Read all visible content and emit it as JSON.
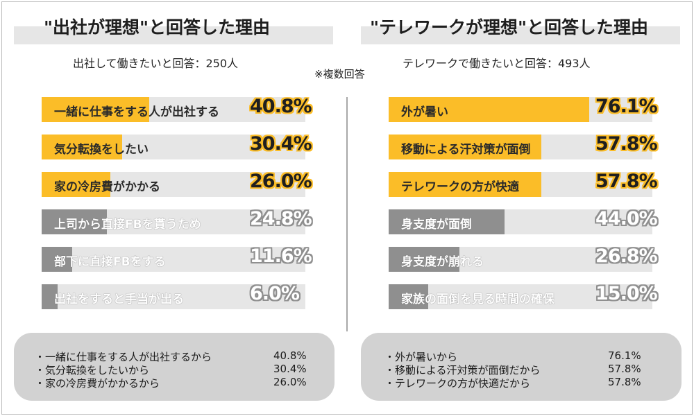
{
  "note": "※複数回答",
  "left": {
    "title": "\"出社が理想\"と回答した理由",
    "subtitle": "出社して働きたいと回答：250人",
    "items": [
      {
        "label": "一緒に仕事をする人が出社する",
        "value": 40.8,
        "pct": "40.8%",
        "highlight": true
      },
      {
        "label": "気分転換をしたい",
        "value": 30.4,
        "pct": "30.4%",
        "highlight": true
      },
      {
        "label": "家の冷房費がかかる",
        "value": 26.0,
        "pct": "26.0%",
        "highlight": true
      },
      {
        "label": "上司から直接FBを貰うため",
        "value": 24.8,
        "pct": "24.8%",
        "highlight": false
      },
      {
        "label": "部下に直接FBをする",
        "value": 11.6,
        "pct": "11.6%",
        "highlight": false
      },
      {
        "label": "出社をすると手当が出る",
        "value": 6.0,
        "pct": "6.0%",
        "highlight": false
      }
    ],
    "summary": [
      {
        "text": "・一緒に仕事をする人が出社するから",
        "pct": "40.8%"
      },
      {
        "text": "・気分転換をしたいから",
        "pct": "30.4%"
      },
      {
        "text": "・家の冷房費がかかるから",
        "pct": "26.0%"
      }
    ]
  },
  "right": {
    "title": "\"テレワークが理想\"と回答した理由",
    "subtitle": "テレワークで働きたいと回答：493人",
    "items": [
      {
        "label": "外が暑い",
        "value": 76.1,
        "pct": "76.1%",
        "highlight": true
      },
      {
        "label": "移動による汗対策が面倒",
        "value": 57.8,
        "pct": "57.8%",
        "highlight": true
      },
      {
        "label": "テレワークの方が快適",
        "value": 57.8,
        "pct": "57.8%",
        "highlight": true
      },
      {
        "label": "身支度が面倒",
        "value": 44.0,
        "pct": "44.0%",
        "highlight": false
      },
      {
        "label": "身支度が崩れる",
        "value": 26.8,
        "pct": "26.8%",
        "highlight": false
      },
      {
        "label": "家族の面倒を見る時間の確保",
        "value": 15.0,
        "pct": "15.0%",
        "highlight": false
      }
    ],
    "summary": [
      {
        "text": "・外が暑いから",
        "pct": "76.1%"
      },
      {
        "text": "・移動による汗対策が面倒だから",
        "pct": "57.8%"
      },
      {
        "text": "・テレワークの方が快適だから",
        "pct": "57.8%"
      }
    ]
  },
  "colors": {
    "accent": "#fbbd28",
    "muted": "#8f8f8f",
    "track": "#e6e6e6",
    "summary_bg": "#d2d2d2"
  },
  "chart_data": [
    {
      "type": "bar",
      "orientation": "horizontal",
      "title": "\"出社が理想\"と回答した理由",
      "subtitle": "出社して働きたいと回答：250人",
      "categories": [
        "一緒に仕事をする人が出社する",
        "気分転換をしたい",
        "家の冷房費がかかる",
        "上司から直接FBを貰うため",
        "部下に直接FBをする",
        "出社をすると手当が出る"
      ],
      "values": [
        40.8,
        30.4,
        26.0,
        24.8,
        11.6,
        6.0
      ],
      "unit": "%",
      "xlim": [
        0,
        100
      ]
    },
    {
      "type": "bar",
      "orientation": "horizontal",
      "title": "\"テレワークが理想\"と回答した理由",
      "subtitle": "テレワークで働きたいと回答：493人",
      "categories": [
        "外が暑い",
        "移動による汗対策が面倒",
        "テレワークの方が快適",
        "身支度が面倒",
        "身支度が崩れる",
        "家族の面倒を見る時間の確保"
      ],
      "values": [
        76.1,
        57.8,
        57.8,
        44.0,
        26.8,
        15.0
      ],
      "unit": "%",
      "xlim": [
        0,
        100
      ]
    }
  ]
}
